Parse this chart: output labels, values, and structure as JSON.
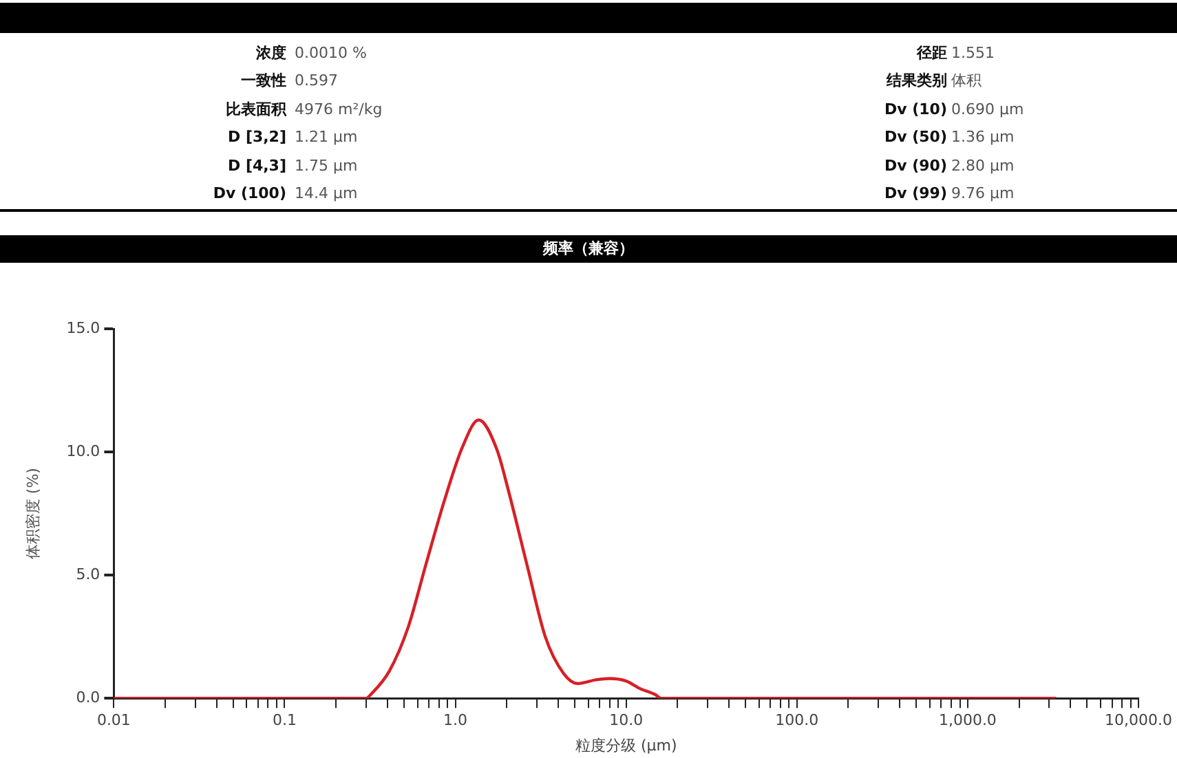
{
  "chart_data": {
    "type": "line",
    "title": "频率（兼容）",
    "xlabel": "粒度分级 (μm)",
    "ylabel": "体积密度 (%)",
    "annotations": [
      "浓度",
      "0.0010 %",
      "径距",
      "1.551",
      "一致性",
      "0.597",
      "结果类别",
      "体积",
      "比表面积",
      "4976 m²/kg",
      "Dv (10)",
      "0.690 μm",
      "D [3,2]",
      "1.21 μm",
      "Dv (50)",
      "1.36 μm",
      "D [4,3]",
      "1.75 μm",
      "Dv (90)",
      "2.80 μm",
      "Dv (100)",
      "14.4 μm",
      "Dv (99)",
      "9.76 μm"
    ],
    "log": "x",
    "grid": false,
    "legend": false,
    "marker": "none",
    "line_style": "solid",
    "xlim": [
      0.01,
      10000
    ],
    "xticks": [
      {
        "value": 0.01,
        "label": "0.01"
      },
      {
        "value": 0.02,
        "label": null
      },
      {
        "value": 0.03,
        "label": null
      },
      {
        "value": 0.04,
        "label": null
      },
      {
        "value": 0.05,
        "label": null
      },
      {
        "value": 0.06,
        "label": null
      },
      {
        "value": 0.07,
        "label": null
      },
      {
        "value": 0.08,
        "label": null
      },
      {
        "value": 0.09,
        "label": null
      },
      {
        "value": 0.1,
        "label": "0.1"
      },
      {
        "value": 0.2,
        "label": null
      },
      {
        "value": 0.3,
        "label": null
      },
      {
        "value": 0.4,
        "label": null
      },
      {
        "value": 0.5,
        "label": null
      },
      {
        "value": 0.6,
        "label": null
      },
      {
        "value": 0.7,
        "label": null
      },
      {
        "value": 0.8,
        "label": null
      },
      {
        "value": 0.9,
        "label": null
      },
      {
        "value": 1,
        "label": "1.0"
      },
      {
        "value": 2,
        "label": null
      },
      {
        "value": 3,
        "label": null
      },
      {
        "value": 4,
        "label": null
      },
      {
        "value": 5,
        "label": null
      },
      {
        "value": 6,
        "label": null
      },
      {
        "value": 7,
        "label": null
      },
      {
        "value": 8,
        "label": null
      },
      {
        "value": 9,
        "label": null
      },
      {
        "value": 10,
        "label": "10.0"
      },
      {
        "value": 20,
        "label": null
      },
      {
        "value": 30,
        "label": null
      },
      {
        "value": 40,
        "label": null
      },
      {
        "value": 50,
        "label": null
      },
      {
        "value": 60,
        "label": null
      },
      {
        "value": 70,
        "label": null
      },
      {
        "value": 80,
        "label": null
      },
      {
        "value": 90,
        "label": null
      },
      {
        "value": 100,
        "label": "100.0"
      },
      {
        "value": 200,
        "label": null
      },
      {
        "value": 300,
        "label": null
      },
      {
        "value": 400,
        "label": null
      },
      {
        "value": 500,
        "label": null
      },
      {
        "value": 600,
        "label": null
      },
      {
        "value": 700,
        "label": null
      },
      {
        "value": 800,
        "label": null
      },
      {
        "value": 900,
        "label": null
      },
      {
        "value": 1000,
        "label": "1,000.0"
      },
      {
        "value": 2000,
        "label": null
      },
      {
        "value": 3000,
        "label": null
      },
      {
        "value": 4000,
        "label": null
      },
      {
        "value": 5000,
        "label": null
      },
      {
        "value": 6000,
        "label": null
      },
      {
        "value": 7000,
        "label": null
      },
      {
        "value": 8000,
        "label": null
      },
      {
        "value": 9000,
        "label": null
      },
      {
        "value": 10000,
        "label": "10,000.0"
      }
    ],
    "ylim": [
      0,
      15
    ],
    "yticks": [
      {
        "value": 0,
        "label": "0.0"
      },
      {
        "value": 5,
        "label": "5.0"
      },
      {
        "value": 10,
        "label": "10.0"
      },
      {
        "value": 15,
        "label": "15.0"
      }
    ],
    "series": [
      {
        "color": "#d62027",
        "x": [
          0.01,
          0.3,
          0.32,
          0.41,
          0.53,
          0.67,
          0.86,
          1.1,
          1.37,
          1.75,
          2.05,
          2.63,
          3.36,
          4.31,
          5.19,
          6.65,
          8.0,
          10,
          12,
          14.8,
          16,
          3300
        ],
        "values": [
          0,
          0,
          0.16,
          1.1,
          2.9,
          5.4,
          8.0,
          10.2,
          11.3,
          10.1,
          8.4,
          5.4,
          2.5,
          1.0,
          0.6,
          0.75,
          0.8,
          0.7,
          0.4,
          0.15,
          0,
          0
        ]
      }
    ]
  }
}
